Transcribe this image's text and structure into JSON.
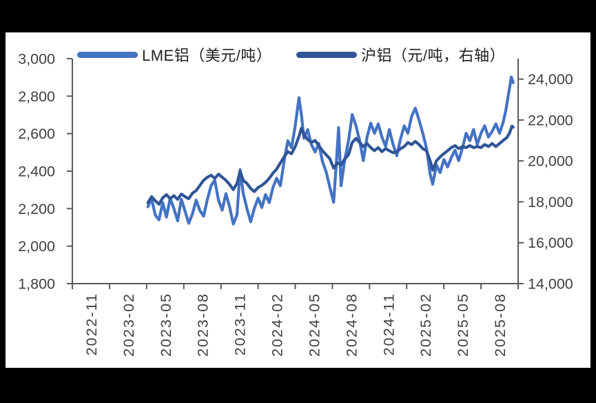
{
  "legend": {
    "items": [
      {
        "label": "LME铝（美元/吨）",
        "color": "#4472C4"
      },
      {
        "label": "沪铝（元/吨，右轴）",
        "color": "#2F5597"
      }
    ]
  },
  "colors": {
    "background": "#ffffff",
    "surround_border": "#000000",
    "axis_line": "#595959",
    "tick_text": "#404040",
    "legend_text": "#1f1f1f",
    "lme_line": "#4472C4",
    "shfe_line": "#2F5597"
  },
  "chart_data": {
    "type": "line",
    "title": "",
    "grid": false,
    "legend_position": "top",
    "x_axis": {
      "tick_labels": [
        "2022-11",
        "2023-02",
        "2023-05",
        "2023-08",
        "2023-11",
        "2024-02",
        "2024-05",
        "2024-08",
        "2024-11",
        "2025-02",
        "2025-05",
        "2025-08"
      ],
      "num_boundary_ticks": 13,
      "total_months": 36,
      "months_per_label": 3
    },
    "y_left": {
      "series_name": "LME铝（美元/吨）",
      "min": 1800,
      "max": 3000,
      "tick_values": [
        3000,
        2800,
        2600,
        2400,
        2200,
        2000,
        1800
      ],
      "tick_labels": [
        "3,000",
        "2,800",
        "2,600",
        "2,400",
        "2,200",
        "2,000",
        "1,800"
      ]
    },
    "y_right": {
      "series_name": "沪铝（元/吨，右轴）",
      "min": 14000,
      "max": 25000,
      "tick_values": [
        24000,
        22000,
        20000,
        18000,
        16000,
        14000
      ],
      "tick_labels": [
        "24,000",
        "22,000",
        "20,000",
        "18,000",
        "16,000",
        "14,000"
      ]
    },
    "series": [
      {
        "name": "LME铝（美元/吨）",
        "axis": "left",
        "color": "#4472C4",
        "points": [
          [
            6.1,
            2210
          ],
          [
            6.4,
            2252
          ],
          [
            6.7,
            2165
          ],
          [
            7.0,
            2140
          ],
          [
            7.3,
            2232
          ],
          [
            7.6,
            2155
          ],
          [
            7.9,
            2255
          ],
          [
            8.2,
            2200
          ],
          [
            8.5,
            2135
          ],
          [
            8.8,
            2250
          ],
          [
            9.1,
            2188
          ],
          [
            9.4,
            2122
          ],
          [
            9.7,
            2172
          ],
          [
            10.0,
            2245
          ],
          [
            10.3,
            2190
          ],
          [
            10.6,
            2160
          ],
          [
            10.9,
            2248
          ],
          [
            11.2,
            2322
          ],
          [
            11.5,
            2352
          ],
          [
            11.8,
            2245
          ],
          [
            12.1,
            2192
          ],
          [
            12.4,
            2280
          ],
          [
            12.7,
            2210
          ],
          [
            13.0,
            2118
          ],
          [
            13.3,
            2168
          ],
          [
            13.55,
            2408
          ],
          [
            13.8,
            2282
          ],
          [
            14.1,
            2200
          ],
          [
            14.4,
            2130
          ],
          [
            14.7,
            2202
          ],
          [
            15.0,
            2256
          ],
          [
            15.3,
            2206
          ],
          [
            15.6,
            2275
          ],
          [
            15.9,
            2232
          ],
          [
            16.2,
            2312
          ],
          [
            16.5,
            2362
          ],
          [
            16.8,
            2322
          ],
          [
            17.1,
            2452
          ],
          [
            17.4,
            2562
          ],
          [
            17.7,
            2525
          ],
          [
            18.0,
            2642
          ],
          [
            18.3,
            2792
          ],
          [
            18.5,
            2700
          ],
          [
            18.7,
            2575
          ],
          [
            19.0,
            2622
          ],
          [
            19.3,
            2542
          ],
          [
            19.6,
            2502
          ],
          [
            19.9,
            2548
          ],
          [
            20.2,
            2452
          ],
          [
            20.5,
            2396
          ],
          [
            20.8,
            2312
          ],
          [
            21.1,
            2234
          ],
          [
            21.3,
            2422
          ],
          [
            21.5,
            2632
          ],
          [
            21.7,
            2322
          ],
          [
            22.0,
            2462
          ],
          [
            22.3,
            2562
          ],
          [
            22.6,
            2702
          ],
          [
            22.9,
            2642
          ],
          [
            23.2,
            2562
          ],
          [
            23.5,
            2456
          ],
          [
            23.8,
            2582
          ],
          [
            24.1,
            2656
          ],
          [
            24.4,
            2602
          ],
          [
            24.7,
            2652
          ],
          [
            25.0,
            2582
          ],
          [
            25.3,
            2532
          ],
          [
            25.6,
            2622
          ],
          [
            25.9,
            2542
          ],
          [
            26.2,
            2482
          ],
          [
            26.5,
            2572
          ],
          [
            26.8,
            2642
          ],
          [
            27.1,
            2602
          ],
          [
            27.4,
            2692
          ],
          [
            27.7,
            2736
          ],
          [
            28.0,
            2672
          ],
          [
            28.3,
            2602
          ],
          [
            28.6,
            2522
          ],
          [
            28.9,
            2382
          ],
          [
            29.1,
            2330
          ],
          [
            29.4,
            2432
          ],
          [
            29.7,
            2392
          ],
          [
            30.0,
            2462
          ],
          [
            30.3,
            2422
          ],
          [
            30.6,
            2472
          ],
          [
            30.9,
            2512
          ],
          [
            31.2,
            2456
          ],
          [
            31.5,
            2522
          ],
          [
            31.8,
            2602
          ],
          [
            32.1,
            2562
          ],
          [
            32.4,
            2622
          ],
          [
            32.7,
            2542
          ],
          [
            33.0,
            2602
          ],
          [
            33.3,
            2642
          ],
          [
            33.6,
            2582
          ],
          [
            33.9,
            2612
          ],
          [
            34.2,
            2652
          ],
          [
            34.5,
            2602
          ],
          [
            34.8,
            2662
          ],
          [
            35.0,
            2722
          ],
          [
            35.2,
            2802
          ],
          [
            35.45,
            2902
          ],
          [
            35.6,
            2872
          ]
        ]
      },
      {
        "name": "沪铝（元/吨，右轴）",
        "axis": "right",
        "color": "#2F5597",
        "points": [
          [
            6.1,
            17950
          ],
          [
            6.4,
            18250
          ],
          [
            6.7,
            18050
          ],
          [
            7.0,
            17880
          ],
          [
            7.3,
            18200
          ],
          [
            7.6,
            18350
          ],
          [
            7.9,
            18150
          ],
          [
            8.2,
            18300
          ],
          [
            8.5,
            18120
          ],
          [
            8.8,
            18380
          ],
          [
            9.1,
            18250
          ],
          [
            9.4,
            18150
          ],
          [
            9.7,
            18420
          ],
          [
            10.0,
            18550
          ],
          [
            10.3,
            18800
          ],
          [
            10.6,
            19050
          ],
          [
            10.9,
            19200
          ],
          [
            11.2,
            19300
          ],
          [
            11.5,
            19150
          ],
          [
            11.8,
            19350
          ],
          [
            12.1,
            19200
          ],
          [
            12.4,
            19050
          ],
          [
            12.7,
            18850
          ],
          [
            13.0,
            18600
          ],
          [
            13.3,
            18900
          ],
          [
            13.55,
            19500
          ],
          [
            13.8,
            19050
          ],
          [
            14.1,
            18900
          ],
          [
            14.4,
            18650
          ],
          [
            14.7,
            18500
          ],
          [
            15.0,
            18700
          ],
          [
            15.3,
            18800
          ],
          [
            15.6,
            18950
          ],
          [
            15.9,
            19150
          ],
          [
            16.2,
            19400
          ],
          [
            16.5,
            19600
          ],
          [
            16.8,
            19900
          ],
          [
            17.1,
            20200
          ],
          [
            17.4,
            20450
          ],
          [
            17.7,
            20350
          ],
          [
            18.0,
            20700
          ],
          [
            18.3,
            21200
          ],
          [
            18.5,
            21600
          ],
          [
            18.7,
            21300
          ],
          [
            19.0,
            21050
          ],
          [
            19.3,
            20900
          ],
          [
            19.6,
            21000
          ],
          [
            19.9,
            20750
          ],
          [
            20.2,
            20500
          ],
          [
            20.5,
            20300
          ],
          [
            20.8,
            20100
          ],
          [
            21.1,
            19650
          ],
          [
            21.4,
            19900
          ],
          [
            21.7,
            19800
          ],
          [
            22.0,
            20100
          ],
          [
            22.3,
            20300
          ],
          [
            22.6,
            20900
          ],
          [
            22.9,
            21100
          ],
          [
            23.2,
            20900
          ],
          [
            23.5,
            20700
          ],
          [
            23.8,
            20850
          ],
          [
            24.1,
            20650
          ],
          [
            24.4,
            20500
          ],
          [
            24.7,
            20650
          ],
          [
            25.0,
            20450
          ],
          [
            25.3,
            20600
          ],
          [
            25.6,
            20500
          ],
          [
            25.9,
            20400
          ],
          [
            26.2,
            20450
          ],
          [
            26.5,
            20600
          ],
          [
            26.8,
            20700
          ],
          [
            27.1,
            20900
          ],
          [
            27.4,
            20800
          ],
          [
            27.7,
            20950
          ],
          [
            28.0,
            20800
          ],
          [
            28.3,
            20600
          ],
          [
            28.6,
            20500
          ],
          [
            28.9,
            20000
          ],
          [
            29.1,
            19550
          ],
          [
            29.4,
            20000
          ],
          [
            29.7,
            20200
          ],
          [
            30.0,
            20350
          ],
          [
            30.3,
            20500
          ],
          [
            30.6,
            20650
          ],
          [
            30.9,
            20750
          ],
          [
            31.2,
            20600
          ],
          [
            31.5,
            20700
          ],
          [
            31.8,
            20650
          ],
          [
            32.1,
            20750
          ],
          [
            32.4,
            20650
          ],
          [
            32.7,
            20700
          ],
          [
            33.0,
            20650
          ],
          [
            33.3,
            20800
          ],
          [
            33.6,
            20700
          ],
          [
            33.9,
            20850
          ],
          [
            34.2,
            20700
          ],
          [
            34.5,
            20850
          ],
          [
            34.8,
            21000
          ],
          [
            35.1,
            21150
          ],
          [
            35.3,
            21350
          ],
          [
            35.5,
            21700
          ],
          [
            35.6,
            21650
          ]
        ]
      }
    ]
  }
}
